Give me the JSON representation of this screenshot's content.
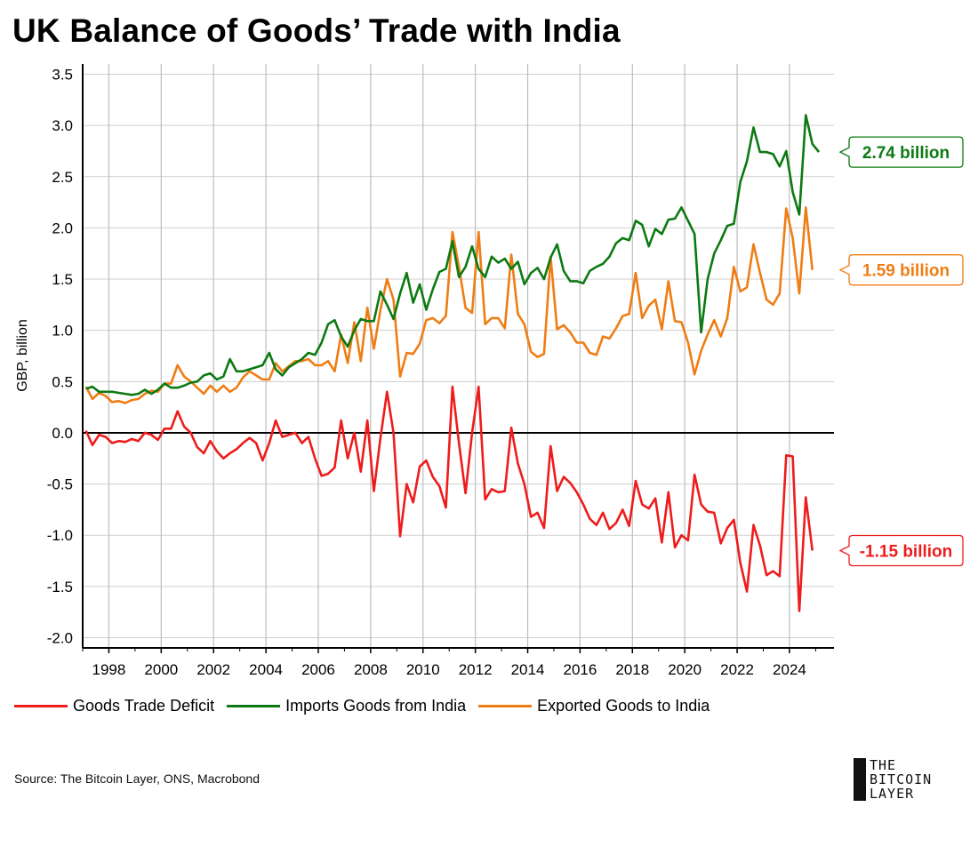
{
  "title": "UK Balance of Goods’ Trade with India",
  "source": "Source: The Bitcoin Layer, ONS, Macrobond",
  "logo": {
    "lines": [
      "THE",
      "BITCOIN",
      "LAYER"
    ]
  },
  "colors": {
    "deficit": "#ee1c1c",
    "imports": "#0c7a12",
    "exports": "#ef7d14"
  },
  "chart_data": {
    "type": "line",
    "title": "UK Balance of Goods’ Trade with India",
    "ylabel": "GBP, billion",
    "xlabel": "",
    "xlim": [
      1997,
      2025.7
    ],
    "ylim": [
      -2.1,
      3.6
    ],
    "yticks": [
      "3.5",
      "3.0",
      "2.5",
      "2.0",
      "1.5",
      "1.0",
      "0.5",
      "0.0",
      "-0.5",
      "-1.0",
      "-1.5",
      "-2.0"
    ],
    "xticks": [
      "1998",
      "2000",
      "2002",
      "2004",
      "2006",
      "2008",
      "2010",
      "2012",
      "2014",
      "2016",
      "2018",
      "2020",
      "2022",
      "2024"
    ],
    "grid": true,
    "legend_position": "bottom",
    "series": [
      {
        "name": "Goods Trade Deficit",
        "color": "#ee1c1c",
        "end_label": "-1.15 billion",
        "values": [
          0.02,
          -0.12,
          -0.02,
          -0.04,
          -0.1,
          -0.08,
          -0.09,
          -0.06,
          -0.08,
          0.0,
          -0.02,
          -0.07,
          0.04,
          0.04,
          0.21,
          0.06,
          0.0,
          -0.14,
          -0.2,
          -0.08,
          -0.18,
          -0.25,
          -0.2,
          -0.16,
          -0.1,
          -0.05,
          -0.1,
          -0.27,
          -0.1,
          0.12,
          -0.04,
          -0.02,
          0.0,
          -0.1,
          -0.04,
          -0.25,
          -0.42,
          -0.4,
          -0.34,
          0.12,
          -0.25,
          0.0,
          -0.38,
          0.12,
          -0.57,
          -0.05,
          0.4,
          0.0,
          -1.01,
          -0.5,
          -0.68,
          -0.33,
          -0.27,
          -0.43,
          -0.52,
          -0.73,
          0.45,
          -0.1,
          -0.59,
          0.0,
          0.45,
          -0.65,
          -0.55,
          -0.58,
          -0.57,
          0.05,
          -0.3,
          -0.5,
          -0.82,
          -0.78,
          -0.93,
          -0.13,
          -0.57,
          -0.43,
          -0.49,
          -0.58,
          -0.7,
          -0.84,
          -0.9,
          -0.78,
          -0.94,
          -0.88,
          -0.75,
          -0.91,
          -0.47,
          -0.7,
          -0.74,
          -0.64,
          -1.07,
          -0.58,
          -1.12,
          -1.0,
          -1.05,
          -0.41,
          -0.7,
          -0.77,
          -0.78,
          -1.08,
          -0.93,
          -0.85,
          -1.27,
          -1.55,
          -0.9,
          -1.1,
          -1.39,
          -1.35,
          -1.4,
          -0.22,
          -0.23,
          -1.74,
          -0.63,
          -1.15
        ]
      },
      {
        "name": "Imports Goods from India",
        "color": "#0c7a12",
        "end_label": "2.74 billion",
        "values": [
          0.43,
          0.45,
          0.4,
          0.4,
          0.4,
          0.39,
          0.38,
          0.37,
          0.38,
          0.42,
          0.38,
          0.42,
          0.48,
          0.44,
          0.44,
          0.46,
          0.49,
          0.5,
          0.56,
          0.58,
          0.52,
          0.55,
          0.72,
          0.6,
          0.6,
          0.62,
          0.64,
          0.66,
          0.78,
          0.62,
          0.56,
          0.64,
          0.68,
          0.72,
          0.78,
          0.76,
          0.88,
          1.06,
          1.1,
          0.94,
          0.84,
          1.0,
          1.11,
          1.09,
          1.09,
          1.38,
          1.25,
          1.11,
          1.36,
          1.56,
          1.27,
          1.45,
          1.2,
          1.4,
          1.57,
          1.6,
          1.87,
          1.52,
          1.62,
          1.82,
          1.6,
          1.52,
          1.72,
          1.66,
          1.7,
          1.6,
          1.67,
          1.45,
          1.56,
          1.61,
          1.5,
          1.71,
          1.84,
          1.58,
          1.48,
          1.48,
          1.46,
          1.58,
          1.62,
          1.65,
          1.72,
          1.85,
          1.9,
          1.88,
          2.07,
          2.03,
          1.82,
          1.99,
          1.94,
          2.08,
          2.09,
          2.2,
          2.07,
          1.94,
          0.98,
          1.5,
          1.75,
          1.88,
          2.02,
          2.04,
          2.45,
          2.65,
          2.98,
          2.74,
          2.74,
          2.72,
          2.6,
          2.75,
          2.35,
          2.13,
          3.1,
          2.82,
          2.74
        ]
      },
      {
        "name": "Exported Goods to India",
        "color": "#ef7d14",
        "end_label": "1.59 billion",
        "values": [
          0.45,
          0.33,
          0.39,
          0.36,
          0.3,
          0.31,
          0.29,
          0.32,
          0.33,
          0.38,
          0.41,
          0.4,
          0.48,
          0.48,
          0.66,
          0.55,
          0.5,
          0.44,
          0.38,
          0.46,
          0.4,
          0.46,
          0.4,
          0.44,
          0.54,
          0.6,
          0.56,
          0.52,
          0.52,
          0.68,
          0.6,
          0.65,
          0.7,
          0.7,
          0.72,
          0.66,
          0.66,
          0.7,
          0.6,
          0.96,
          0.68,
          1.08,
          0.7,
          1.22,
          0.82,
          1.2,
          1.5,
          1.3,
          0.55,
          0.78,
          0.77,
          0.87,
          1.1,
          1.12,
          1.07,
          1.14,
          1.96,
          1.62,
          1.22,
          1.17,
          1.96,
          1.06,
          1.12,
          1.12,
          1.02,
          1.74,
          1.16,
          1.06,
          0.79,
          0.74,
          0.77,
          1.72,
          1.01,
          1.05,
          0.98,
          0.88,
          0.88,
          0.78,
          0.76,
          0.94,
          0.92,
          1.02,
          1.14,
          1.16,
          1.56,
          1.12,
          1.24,
          1.3,
          1.01,
          1.48,
          1.09,
          1.08,
          0.88,
          0.57,
          0.8,
          0.96,
          1.1,
          0.94,
          1.12,
          1.62,
          1.38,
          1.42,
          1.84,
          1.56,
          1.3,
          1.25,
          1.36,
          2.19,
          1.9,
          1.36,
          2.2,
          1.59
        ]
      }
    ]
  }
}
